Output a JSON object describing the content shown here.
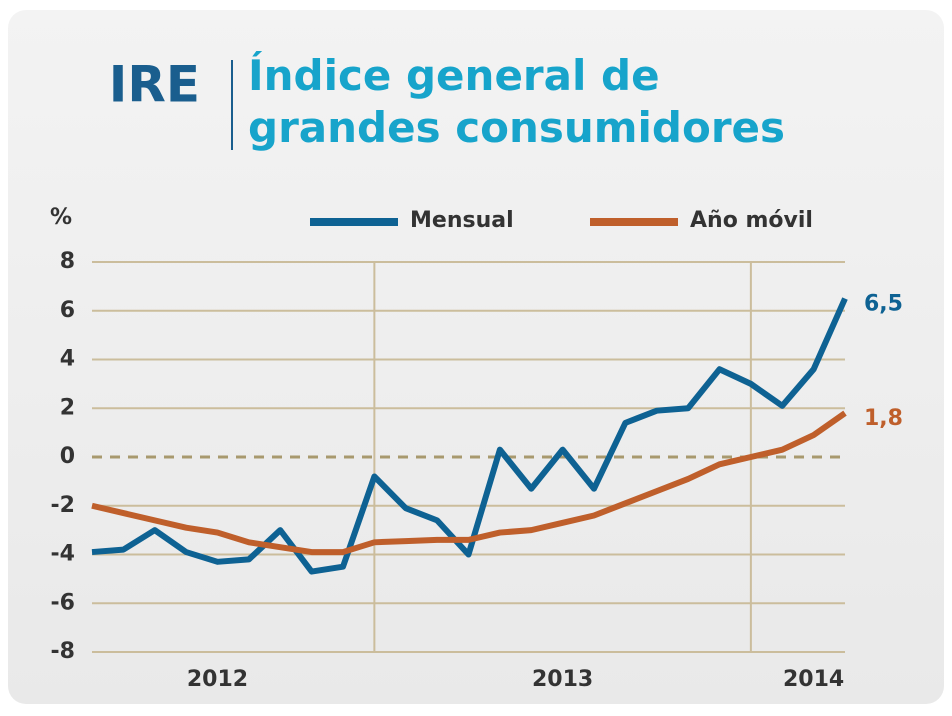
{
  "chart_data": {
    "type": "line",
    "title": "IRE",
    "subtitle": "Índice general de grandes consumidores",
    "y_label": "%",
    "categories": [
      null,
      null,
      null,
      null,
      "2012",
      null,
      null,
      null,
      null,
      null,
      null,
      null,
      null,
      null,
      null,
      "2013",
      null,
      null,
      null,
      null,
      null,
      null,
      null,
      "2014",
      null
    ],
    "x_dividers": [
      9,
      21
    ],
    "series": [
      {
        "name": "Mensual",
        "color": "#0e6293",
        "end_label": "6,5",
        "values": [
          -3.9,
          -3.8,
          -3.0,
          -3.9,
          -4.3,
          -4.2,
          -3.0,
          -4.7,
          -4.5,
          -0.8,
          -2.1,
          -2.6,
          -4.0,
          0.3,
          -1.3,
          0.3,
          -1.3,
          1.4,
          1.9,
          2.0,
          3.6,
          3.0,
          2.1,
          3.6,
          6.5
        ]
      },
      {
        "name": "Año móvil",
        "color": "#bf5f2b",
        "end_label": "1,8",
        "values": [
          -2.0,
          -2.3,
          -2.6,
          -2.9,
          -3.1,
          -3.5,
          -3.7,
          -3.9,
          -3.9,
          -3.5,
          -3.45,
          -3.4,
          -3.4,
          -3.1,
          -3.0,
          -2.7,
          -2.4,
          -1.9,
          -1.4,
          -0.9,
          -0.3,
          0.0,
          0.3,
          0.9,
          1.8
        ]
      }
    ],
    "ylim": [
      -8,
      8
    ],
    "yticks": [
      -8,
      -6,
      -4,
      -2,
      0,
      2,
      4,
      6,
      8
    ],
    "grid": true,
    "legend": "top"
  }
}
